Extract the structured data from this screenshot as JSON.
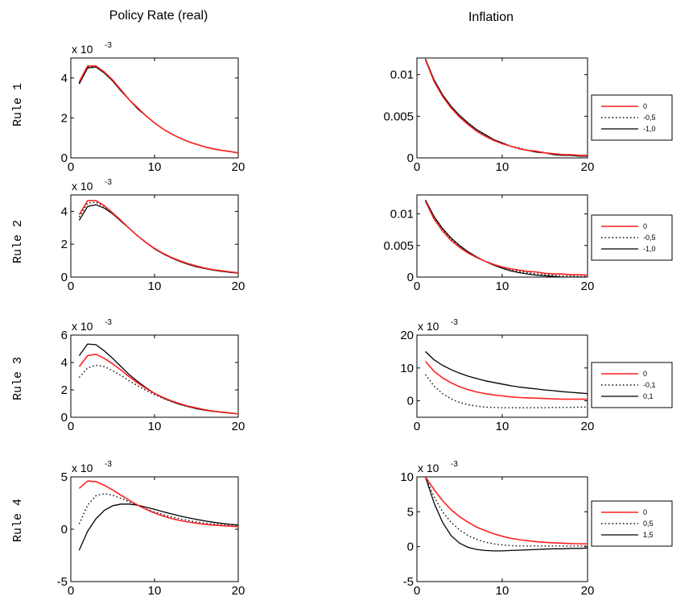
{
  "column_titles": [
    "Policy Rate (real)",
    "Inflation"
  ],
  "row_labels": [
    "Rule 1",
    "Rule 2",
    "Rule 3",
    "Rule 4"
  ],
  "colors": {
    "red": "#ff2020",
    "black": "#000000",
    "frame": "#000000"
  },
  "chart_data": [
    {
      "type": "line",
      "row": 0,
      "col": 0,
      "exponent_label": "x 10",
      "exponent_sup": "-3",
      "xlim": [
        0,
        20
      ],
      "ylim": [
        0,
        5
      ],
      "xticks": [
        0,
        10,
        20
      ],
      "xtick_labels": [
        "0",
        "10",
        "20"
      ],
      "yticks": [
        0,
        2,
        4
      ],
      "ytick_labels": [
        "0",
        "2",
        "4"
      ],
      "x": [
        1,
        2,
        3,
        4,
        5,
        6,
        7,
        8,
        9,
        10,
        11,
        12,
        13,
        14,
        15,
        16,
        17,
        18,
        19,
        20
      ],
      "series": [
        {
          "name": "0",
          "style": "red-solid",
          "values": [
            3.8,
            4.6,
            4.6,
            4.3,
            3.9,
            3.4,
            2.9,
            2.5,
            2.1,
            1.75,
            1.45,
            1.2,
            1.0,
            0.82,
            0.68,
            0.55,
            0.45,
            0.38,
            0.32,
            0.25
          ]
        },
        {
          "name": "-0,5",
          "style": "black-dotted",
          "values": [
            3.75,
            4.55,
            4.55,
            4.25,
            3.85,
            3.35,
            2.9,
            2.45,
            2.1,
            1.75,
            1.45,
            1.2,
            1.0,
            0.82,
            0.68,
            0.55,
            0.46,
            0.38,
            0.32,
            0.25
          ]
        },
        {
          "name": "-1,0",
          "style": "black-solid",
          "values": [
            3.7,
            4.5,
            4.55,
            4.25,
            3.85,
            3.35,
            2.9,
            2.45,
            2.1,
            1.75,
            1.45,
            1.2,
            1.0,
            0.82,
            0.68,
            0.56,
            0.46,
            0.38,
            0.32,
            0.26
          ]
        }
      ]
    },
    {
      "type": "line",
      "row": 0,
      "col": 1,
      "exponent_label": "",
      "exponent_sup": "",
      "xlim": [
        0,
        20
      ],
      "ylim": [
        0,
        0.012
      ],
      "xticks": [
        0,
        10,
        20
      ],
      "xtick_labels": [
        "0",
        "10",
        "20"
      ],
      "yticks": [
        0,
        0.005,
        0.01
      ],
      "ytick_labels": [
        "0",
        "0.005",
        "0.01"
      ],
      "x": [
        1,
        2,
        3,
        4,
        5,
        6,
        7,
        8,
        9,
        10,
        11,
        12,
        13,
        14,
        15,
        16,
        17,
        18,
        19,
        20
      ],
      "legend": [
        "0",
        "-0,5",
        "-1,0"
      ],
      "series": [
        {
          "name": "0",
          "style": "red-solid",
          "values": [
            0.0118,
            0.0092,
            0.0074,
            0.006,
            0.0049,
            0.004,
            0.0032,
            0.0026,
            0.0021,
            0.0017,
            0.0014,
            0.0011,
            0.0009,
            0.0008,
            0.0006,
            0.0005,
            0.0004,
            0.0004,
            0.0003,
            0.0003
          ]
        },
        {
          "name": "-0,5",
          "style": "black-dotted",
          "values": [
            0.0118,
            0.0093,
            0.0075,
            0.0061,
            0.005,
            0.0041,
            0.0033,
            0.0027,
            0.0022,
            0.0018,
            0.0014,
            0.0012,
            0.0009,
            0.0008,
            0.0006,
            0.0005,
            0.0004,
            0.0003,
            0.0003,
            0.0002
          ]
        },
        {
          "name": "-1,0",
          "style": "black-solid",
          "values": [
            0.0119,
            0.0094,
            0.0076,
            0.0062,
            0.0051,
            0.0042,
            0.0034,
            0.0028,
            0.0022,
            0.0018,
            0.0014,
            0.0011,
            0.0009,
            0.0007,
            0.0006,
            0.0004,
            0.0003,
            0.0003,
            0.0002,
            0.0002
          ]
        }
      ]
    },
    {
      "type": "line",
      "row": 1,
      "col": 0,
      "exponent_label": "x 10",
      "exponent_sup": "-3",
      "xlim": [
        0,
        20
      ],
      "ylim": [
        0,
        5
      ],
      "xticks": [
        0,
        10,
        20
      ],
      "xtick_labels": [
        "0",
        "10",
        "20"
      ],
      "yticks": [
        0,
        2,
        4
      ],
      "ytick_labels": [
        "0",
        "2",
        "4"
      ],
      "x": [
        1,
        2,
        3,
        4,
        5,
        6,
        7,
        8,
        9,
        10,
        11,
        12,
        13,
        14,
        15,
        16,
        17,
        18,
        19,
        20
      ],
      "series": [
        {
          "name": "0",
          "style": "red-solid",
          "values": [
            3.8,
            4.65,
            4.65,
            4.35,
            3.9,
            3.45,
            2.95,
            2.5,
            2.1,
            1.75,
            1.45,
            1.2,
            1.0,
            0.82,
            0.68,
            0.55,
            0.45,
            0.38,
            0.32,
            0.26
          ]
        },
        {
          "name": "-0,5",
          "style": "black-dotted",
          "values": [
            3.65,
            4.5,
            4.55,
            4.3,
            3.9,
            3.4,
            2.95,
            2.5,
            2.1,
            1.72,
            1.43,
            1.18,
            0.98,
            0.8,
            0.65,
            0.53,
            0.44,
            0.37,
            0.3,
            0.24
          ]
        },
        {
          "name": "-1,0",
          "style": "black-solid",
          "values": [
            3.45,
            4.3,
            4.4,
            4.2,
            3.85,
            3.4,
            2.95,
            2.5,
            2.1,
            1.72,
            1.42,
            1.17,
            0.96,
            0.78,
            0.63,
            0.52,
            0.42,
            0.35,
            0.29,
            0.24
          ]
        }
      ]
    },
    {
      "type": "line",
      "row": 1,
      "col": 1,
      "exponent_label": "",
      "exponent_sup": "",
      "xlim": [
        0,
        20
      ],
      "ylim": [
        0,
        0.013
      ],
      "xticks": [
        0,
        10,
        20
      ],
      "xtick_labels": [
        "0",
        "10",
        "20"
      ],
      "yticks": [
        0,
        0.005,
        0.01
      ],
      "ytick_labels": [
        "0",
        "0.005",
        "0.01"
      ],
      "x": [
        1,
        2,
        3,
        4,
        5,
        6,
        7,
        8,
        9,
        10,
        11,
        12,
        13,
        14,
        15,
        16,
        17,
        18,
        19,
        20
      ],
      "legend": [
        "0",
        "-0,5",
        "-1,0"
      ],
      "series": [
        {
          "name": "0",
          "style": "red-solid",
          "values": [
            0.012,
            0.0092,
            0.0073,
            0.0058,
            0.0047,
            0.0038,
            0.0031,
            0.0025,
            0.002,
            0.0016,
            0.0013,
            0.0011,
            0.0009,
            0.0008,
            0.0006,
            0.0005,
            0.0005,
            0.0004,
            0.0004,
            0.0003
          ]
        },
        {
          "name": "-0,5",
          "style": "black-dotted",
          "values": [
            0.0121,
            0.0094,
            0.0075,
            0.006,
            0.0048,
            0.0039,
            0.0031,
            0.0025,
            0.0019,
            0.0015,
            0.0012,
            0.0009,
            0.0007,
            0.0005,
            0.0004,
            0.0003,
            0.0002,
            0.0002,
            0.0001,
            0.0001
          ]
        },
        {
          "name": "-1,0",
          "style": "black-solid",
          "values": [
            0.0122,
            0.0096,
            0.0077,
            0.0062,
            0.005,
            0.004,
            0.0032,
            0.0025,
            0.0019,
            0.0014,
            0.001,
            0.0007,
            0.0005,
            0.0003,
            0.0002,
            0.0001,
            0.0,
            0.0,
            0.0,
            0.0
          ]
        }
      ]
    },
    {
      "type": "line",
      "row": 2,
      "col": 0,
      "exponent_label": "x 10",
      "exponent_sup": "-3",
      "xlim": [
        0,
        20
      ],
      "ylim": [
        0,
        6
      ],
      "xticks": [
        0,
        10,
        20
      ],
      "xtick_labels": [
        "0",
        "10",
        "20"
      ],
      "yticks": [
        0,
        2,
        4,
        6
      ],
      "ytick_labels": [
        "0",
        "2",
        "4",
        "6"
      ],
      "x": [
        1,
        2,
        3,
        4,
        5,
        6,
        7,
        8,
        9,
        10,
        11,
        12,
        13,
        14,
        15,
        16,
        17,
        18,
        19,
        20
      ],
      "series": [
        {
          "name": "0",
          "style": "red-solid",
          "values": [
            3.7,
            4.5,
            4.6,
            4.3,
            3.9,
            3.45,
            2.95,
            2.5,
            2.1,
            1.75,
            1.45,
            1.2,
            1.0,
            0.82,
            0.68,
            0.55,
            0.45,
            0.38,
            0.32,
            0.25
          ]
        },
        {
          "name": "-0,1",
          "style": "black-dotted",
          "values": [
            2.9,
            3.6,
            3.8,
            3.7,
            3.4,
            3.05,
            2.65,
            2.3,
            1.95,
            1.65,
            1.38,
            1.15,
            0.95,
            0.78,
            0.65,
            0.53,
            0.44,
            0.37,
            0.31,
            0.25
          ]
        },
        {
          "name": "0,1",
          "style": "black-solid",
          "values": [
            4.5,
            5.35,
            5.3,
            4.85,
            4.3,
            3.7,
            3.1,
            2.6,
            2.15,
            1.75,
            1.42,
            1.16,
            0.95,
            0.78,
            0.63,
            0.52,
            0.43,
            0.36,
            0.3,
            0.25
          ]
        }
      ]
    },
    {
      "type": "line",
      "row": 2,
      "col": 1,
      "exponent_label": "x 10",
      "exponent_sup": "-3",
      "xlim": [
        0,
        20
      ],
      "ylim": [
        -5,
        20
      ],
      "xticks": [
        0,
        10,
        20
      ],
      "xtick_labels": [
        "0",
        "10",
        "20"
      ],
      "yticks": [
        0,
        10,
        20
      ],
      "ytick_labels": [
        "0",
        "10",
        "20"
      ],
      "x": [
        1,
        2,
        3,
        4,
        5,
        6,
        7,
        8,
        9,
        10,
        11,
        12,
        13,
        14,
        15,
        16,
        17,
        18,
        19,
        20
      ],
      "legend": [
        "0",
        "-0,1",
        "0,1"
      ],
      "series": [
        {
          "name": "0",
          "style": "red-solid",
          "values": [
            12,
            9,
            7,
            5.5,
            4.3,
            3.4,
            2.7,
            2.2,
            1.8,
            1.5,
            1.2,
            1.0,
            0.9,
            0.8,
            0.7,
            0.6,
            0.5,
            0.5,
            0.5,
            0.5
          ]
        },
        {
          "name": "-0,1",
          "style": "black-dotted",
          "values": [
            8,
            4.5,
            2.2,
            0.6,
            -0.5,
            -1.2,
            -1.6,
            -1.9,
            -2.0,
            -2.1,
            -2.1,
            -2.1,
            -2.1,
            -2.1,
            -2.1,
            -2.0,
            -2.0,
            -2.0,
            -1.9,
            -1.9
          ]
        },
        {
          "name": "0,1",
          "style": "black-solid",
          "values": [
            15,
            12.5,
            10.8,
            9.5,
            8.4,
            7.5,
            6.8,
            6.1,
            5.6,
            5.1,
            4.6,
            4.2,
            3.9,
            3.6,
            3.3,
            3.1,
            2.8,
            2.6,
            2.4,
            2.2
          ]
        }
      ]
    },
    {
      "type": "line",
      "row": 3,
      "col": 0,
      "exponent_label": "x 10",
      "exponent_sup": "-3",
      "xlim": [
        0,
        20
      ],
      "ylim": [
        -5,
        5
      ],
      "xticks": [
        0,
        10,
        20
      ],
      "xtick_labels": [
        "0",
        "10",
        "20"
      ],
      "yticks": [
        -5,
        0,
        5
      ],
      "ytick_labels": [
        "-5",
        "0",
        "5"
      ],
      "x": [
        1,
        2,
        3,
        4,
        5,
        6,
        7,
        8,
        9,
        10,
        11,
        12,
        13,
        14,
        15,
        16,
        17,
        18,
        19,
        20
      ],
      "series": [
        {
          "name": "0",
          "style": "red-solid",
          "values": [
            3.9,
            4.6,
            4.55,
            4.2,
            3.75,
            3.25,
            2.75,
            2.3,
            1.9,
            1.55,
            1.27,
            1.03,
            0.84,
            0.69,
            0.57,
            0.47,
            0.4,
            0.34,
            0.29,
            0.25
          ]
        },
        {
          "name": "0,5",
          "style": "black-dotted",
          "values": [
            0.5,
            2.3,
            3.2,
            3.4,
            3.25,
            2.95,
            2.6,
            2.25,
            1.93,
            1.65,
            1.4,
            1.18,
            1.0,
            0.84,
            0.7,
            0.59,
            0.5,
            0.42,
            0.36,
            0.3
          ]
        },
        {
          "name": "1,5",
          "style": "black-solid",
          "values": [
            -2.0,
            -0.2,
            1.0,
            1.8,
            2.25,
            2.4,
            2.4,
            2.3,
            2.1,
            1.9,
            1.68,
            1.47,
            1.27,
            1.1,
            0.94,
            0.8,
            0.67,
            0.56,
            0.47,
            0.4
          ]
        }
      ]
    },
    {
      "type": "line",
      "row": 3,
      "col": 1,
      "exponent_label": "x 10",
      "exponent_sup": "-3",
      "xlim": [
        0,
        20
      ],
      "ylim": [
        -5,
        10
      ],
      "xticks": [
        0,
        10,
        20
      ],
      "xtick_labels": [
        "0",
        "10",
        "20"
      ],
      "yticks": [
        -5,
        0,
        5,
        10
      ],
      "ytick_labels": [
        "-5",
        "0",
        "5",
        "10"
      ],
      "x": [
        1,
        2,
        3,
        4,
        5,
        6,
        7,
        8,
        9,
        10,
        11,
        12,
        13,
        14,
        15,
        16,
        17,
        18,
        19,
        20
      ],
      "legend": [
        "0",
        "0,5",
        "1,5"
      ],
      "series": [
        {
          "name": "0",
          "style": "red-solid",
          "values": [
            10,
            8.2,
            6.6,
            5.3,
            4.3,
            3.5,
            2.8,
            2.3,
            1.85,
            1.5,
            1.2,
            1.0,
            0.85,
            0.72,
            0.62,
            0.55,
            0.5,
            0.45,
            0.42,
            0.4
          ]
        },
        {
          "name": "0,5",
          "style": "black-dotted",
          "values": [
            10,
            7.2,
            5.0,
            3.5,
            2.4,
            1.6,
            1.05,
            0.65,
            0.4,
            0.25,
            0.15,
            0.1,
            0.1,
            0.1,
            0.1,
            0.1,
            0.1,
            0.1,
            0.1,
            0.1
          ]
        },
        {
          "name": "1,5",
          "style": "black-solid",
          "values": [
            10,
            6.3,
            3.5,
            1.6,
            0.5,
            -0.1,
            -0.4,
            -0.55,
            -0.6,
            -0.6,
            -0.55,
            -0.5,
            -0.45,
            -0.4,
            -0.35,
            -0.3,
            -0.3,
            -0.25,
            -0.25,
            -0.2
          ]
        }
      ]
    }
  ]
}
